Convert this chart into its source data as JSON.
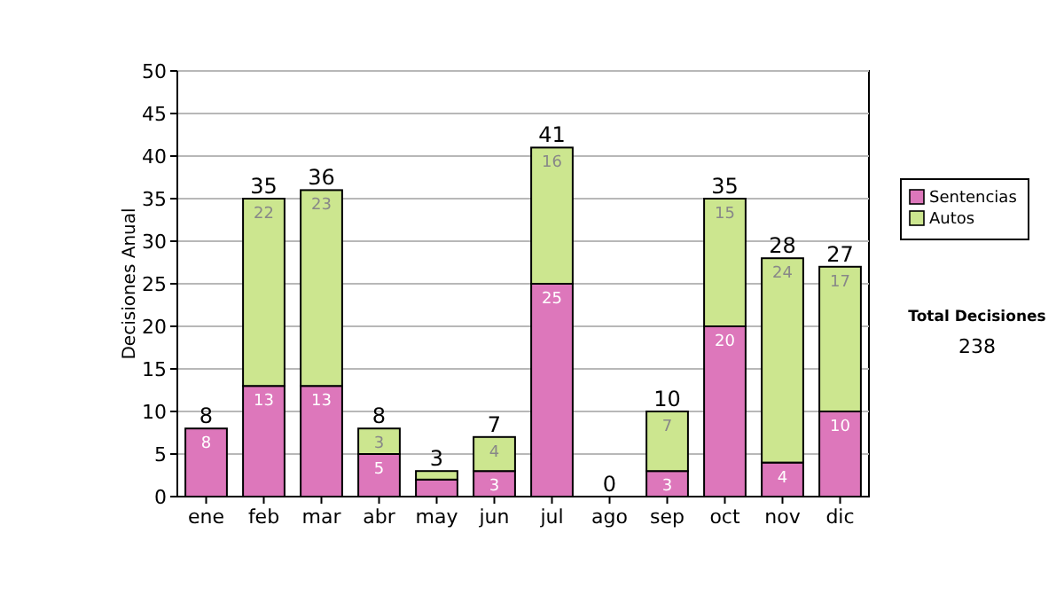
{
  "chart_data": {
    "type": "bar",
    "stacked": true,
    "ylabel": "Decisiones Anual",
    "categories": [
      "ene",
      "feb",
      "mar",
      "abr",
      "may",
      "jun",
      "jul",
      "ago",
      "sep",
      "oct",
      "nov",
      "dic"
    ],
    "series": [
      {
        "name": "Sentencias",
        "color": "#dd77bb",
        "values": [
          8,
          13,
          13,
          5,
          2,
          3,
          25,
          0,
          3,
          20,
          4,
          10
        ],
        "value_labels": [
          "8",
          "13",
          "13",
          "5",
          null,
          "3",
          "25",
          null,
          "3",
          "20",
          "4",
          "10"
        ]
      },
      {
        "name": "Autos",
        "color": "#cce68f",
        "values": [
          0,
          22,
          23,
          3,
          1,
          4,
          16,
          0,
          7,
          15,
          24,
          17
        ],
        "value_labels": [
          null,
          "22",
          "23",
          "3",
          null,
          "4",
          "16",
          null,
          "7",
          "15",
          "24",
          "17"
        ]
      }
    ],
    "totals": [
      "8",
      "35",
      "36",
      "8",
      "3",
      "7",
      "41",
      "0",
      "10",
      "35",
      "28",
      "27"
    ],
    "ylim": [
      0,
      50
    ],
    "yticks": [
      0,
      5,
      10,
      15,
      20,
      25,
      30,
      35,
      40,
      45,
      50
    ],
    "grid": "y",
    "legend": "right",
    "annotations": [
      "Total Decisiones",
      "238"
    ]
  }
}
